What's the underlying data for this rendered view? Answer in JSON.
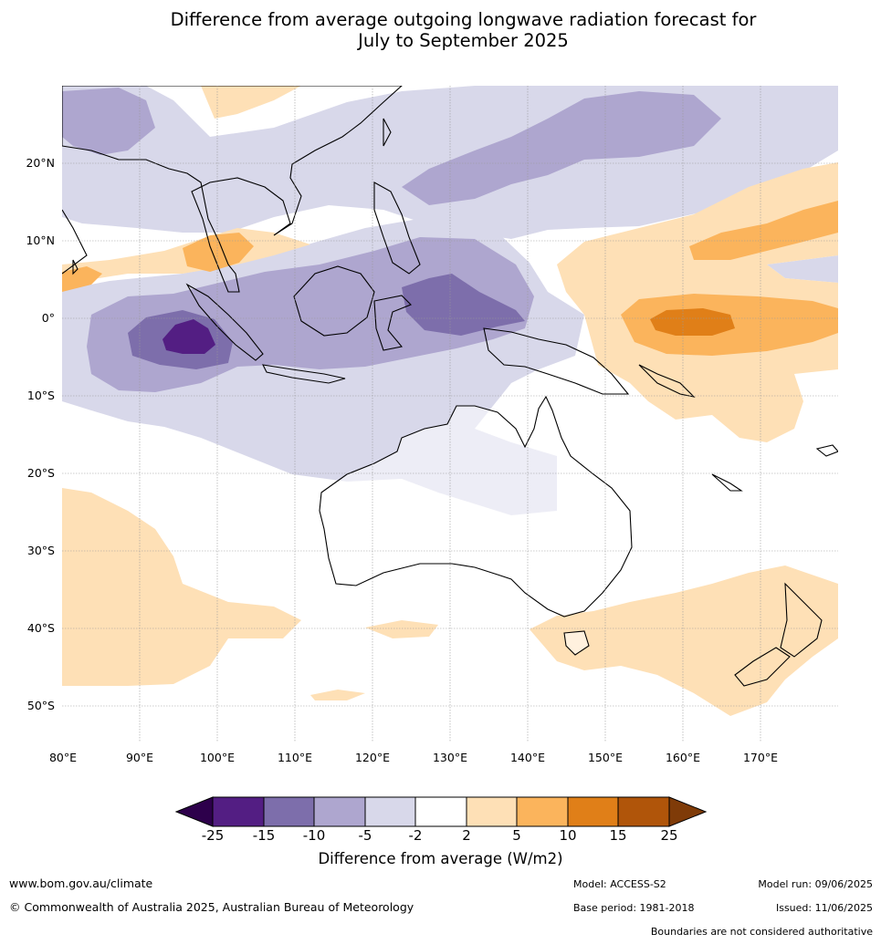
{
  "title_line1": "Difference from average outgoing longwave radiation forecast for",
  "title_line2": "July to September 2025",
  "map": {
    "lat_ticks": [
      "20°N",
      "10°N",
      "0°",
      "10°S",
      "20°S",
      "30°S",
      "40°S",
      "50°S"
    ],
    "lon_ticks": [
      "80°E",
      "90°E",
      "100°E",
      "110°E",
      "120°E",
      "130°E",
      "140°E",
      "150°E",
      "160°E",
      "170°E"
    ],
    "palette": {
      "neg25": "#531e83",
      "neg15": "#7d6eab",
      "neg10": "#aea6cf",
      "neg5": "#d8d8ea",
      "zero": "#ffffff",
      "pos2": "#fee0b6",
      "pos5": "#fbb45c",
      "pos10": "#e07f18",
      "pos15": "#b0550a",
      "end_low": "#2d004b",
      "end_high": "#7f3b08"
    }
  },
  "colorbar": {
    "labels": [
      "-25",
      "-15",
      "-10",
      "-5",
      "-2",
      "2",
      "5",
      "10",
      "15",
      "25"
    ],
    "title": "Difference from average (W/m2)"
  },
  "footer": {
    "website": "www.bom.gov.au/climate",
    "copyright": "© Commonwealth of Australia 2025, Australian Bureau of Meteorology",
    "model": "Model: ACCESS-S2",
    "base_period": "Base period: 1981-2018",
    "model_run": "Model run: 09/06/2025",
    "issued": "Issued: 11/06/2025",
    "disclaimer": "Boundaries are not considered authoritative"
  }
}
